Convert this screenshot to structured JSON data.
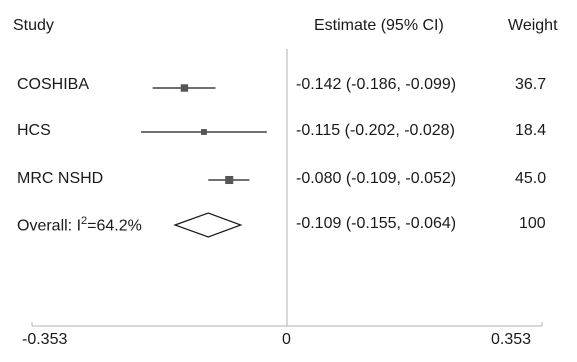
{
  "headers": {
    "study": "Study",
    "estimate": "Estimate (95% CI)",
    "weight": "Weight"
  },
  "rows": [
    {
      "label": "COSHIBA",
      "estimate_text": "-0.142 (-0.186, -0.099)",
      "weight": "36.7"
    },
    {
      "label": "HCS",
      "estimate_text": "-0.115 (-0.202, -0.028)",
      "weight": "18.4"
    },
    {
      "label": "MRC NSHD",
      "estimate_text": "-0.080 (-0.109, -0.052)",
      "weight": "45.0"
    },
    {
      "label_prefix": "Overall: I",
      "label_sup": "2",
      "label_suffix": "=64.2%",
      "estimate_text": "-0.109 (-0.155, -0.064)",
      "weight": "100"
    }
  ],
  "axis": {
    "ticks": [
      "-0.353",
      "0",
      "0.353"
    ]
  },
  "chart_data": {
    "type": "forest",
    "title": "",
    "xlabel": "",
    "ylabel": "",
    "xlim": [
      -0.353,
      0.353
    ],
    "reference_line": 0,
    "studies": [
      {
        "name": "COSHIBA",
        "estimate": -0.142,
        "ci": [
          -0.186,
          -0.099
        ],
        "weight": 36.7
      },
      {
        "name": "HCS",
        "estimate": -0.115,
        "ci": [
          -0.202,
          -0.028
        ],
        "weight": 18.4
      },
      {
        "name": "MRC NSHD",
        "estimate": -0.08,
        "ci": [
          -0.109,
          -0.052
        ],
        "weight": 45.0
      }
    ],
    "overall": {
      "name": "Overall: I²=64.2%",
      "estimate": -0.109,
      "ci": [
        -0.155,
        -0.064
      ],
      "weight": 100,
      "i2": 64.2
    },
    "tick_values": [
      -0.353,
      0,
      0.353
    ],
    "colors": {
      "marker": "#555555",
      "line": "#1a1a1a",
      "axis": "#b0b0b0"
    }
  }
}
